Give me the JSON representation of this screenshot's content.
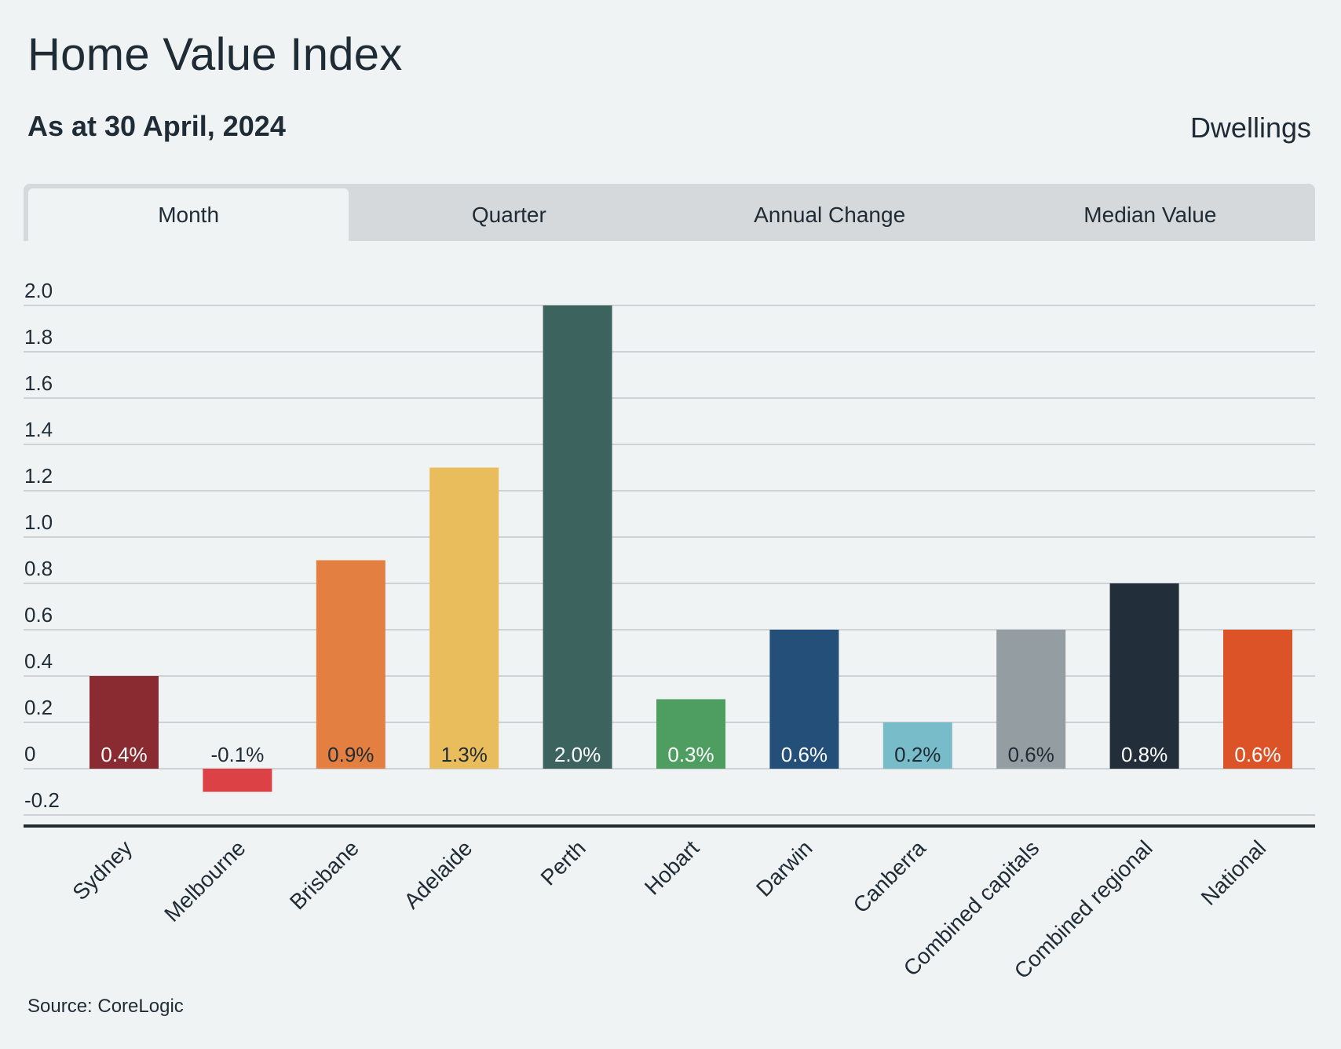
{
  "header": {
    "title": "Home Value Index",
    "subtitle": "As at 30 April, 2024",
    "segment": "Dwellings"
  },
  "tabs": [
    {
      "label": "Month",
      "active": true
    },
    {
      "label": "Quarter",
      "active": false
    },
    {
      "label": "Annual Change",
      "active": false
    },
    {
      "label": "Median Value",
      "active": false
    }
  ],
  "footer": {
    "source": "Source: CoreLogic"
  },
  "chart_data": {
    "type": "bar",
    "categories": [
      "Sydney",
      "Melbourne",
      "Brisbane",
      "Adelaide",
      "Perth",
      "Hobart",
      "Darwin",
      "Canberra",
      "Combined capitals",
      "Combined regional",
      "National"
    ],
    "values": [
      0.4,
      -0.1,
      0.9,
      1.3,
      2.0,
      0.3,
      0.6,
      0.2,
      0.6,
      0.8,
      0.6
    ],
    "value_labels": [
      "0.4%",
      "-0.1%",
      "0.9%",
      "1.3%",
      "2.0%",
      "0.3%",
      "0.6%",
      "0.2%",
      "0.6%",
      "0.8%",
      "0.6%"
    ],
    "colors": [
      "#8a2b31",
      "#db4145",
      "#e27f41",
      "#e9bd5b",
      "#3c635e",
      "#4e9e62",
      "#234f79",
      "#79bcc9",
      "#949ea2",
      "#222e39",
      "#dc5328"
    ],
    "label_colors": [
      "#ffffff",
      "#1f2b35",
      "#1f2b35",
      "#1f2b35",
      "#ffffff",
      "#ffffff",
      "#ffffff",
      "#1f2b35",
      "#1f2b35",
      "#ffffff",
      "#ffffff"
    ],
    "y_ticks": [
      -0.2,
      0,
      0.2,
      0.4,
      0.6,
      0.8,
      1.0,
      1.2,
      1.4,
      1.6,
      1.8,
      2.0
    ],
    "y_tick_labels": [
      "-0.2",
      "0",
      "0.2",
      "0.4",
      "0.6",
      "0.8",
      "1.0",
      "1.2",
      "1.4",
      "1.6",
      "1.8",
      "2.0"
    ],
    "ylim": [
      -0.2,
      2.0
    ],
    "grid": true,
    "xlabel": "",
    "ylabel": ""
  }
}
